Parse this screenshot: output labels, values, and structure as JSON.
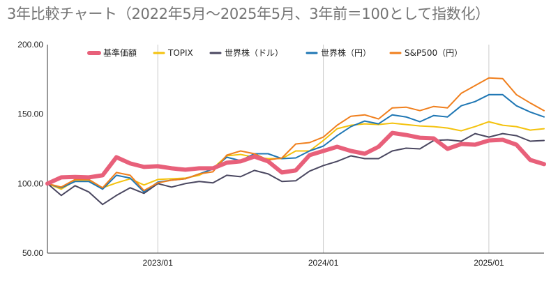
{
  "chart_data": {
    "type": "line",
    "title": "3年比較チャート（2022年5月～2025年5月、3年前＝100として指数化）",
    "xlabel": "",
    "ylabel": "",
    "ylim": [
      50,
      200
    ],
    "y_ticks": [
      "50.00",
      "100.00",
      "150.00",
      "200.00"
    ],
    "x_ticks": [
      "2023/01",
      "2024/01",
      "2025/01"
    ],
    "x_tick_dates": [
      "2023-01",
      "2024-01",
      "2025-01"
    ],
    "x": [
      "2022-05",
      "2022-06",
      "2022-07",
      "2022-08",
      "2022-09",
      "2022-10",
      "2022-11",
      "2022-12",
      "2023-01",
      "2023-02",
      "2023-03",
      "2023-04",
      "2023-05",
      "2023-06",
      "2023-07",
      "2023-08",
      "2023-09",
      "2023-10",
      "2023-11",
      "2023-12",
      "2024-01",
      "2024-02",
      "2024-03",
      "2024-04",
      "2024-05",
      "2024-06",
      "2024-07",
      "2024-08",
      "2024-09",
      "2024-10",
      "2024-11",
      "2024-12",
      "2025-01",
      "2025-02",
      "2025-03",
      "2025-04",
      "2025-05"
    ],
    "grid": "vertical lines at year ticks",
    "legend_position": "top",
    "series": [
      {
        "name": "基準価額",
        "color": "#e8607a",
        "values": [
          100,
          104.5,
          104.8,
          104.5,
          106,
          119,
          114.5,
          112,
          112.5,
          111,
          110,
          111,
          111,
          115,
          116,
          119.5,
          116,
          108,
          109.5,
          120.5,
          123.5,
          126.5,
          123.5,
          121.5,
          126.5,
          136.5,
          135,
          133,
          132.5,
          125,
          128.5,
          128,
          131,
          131.5,
          128,
          117,
          114
        ]
      },
      {
        "name": "TOPIX",
        "color": "#f4c20d",
        "values": [
          100,
          96,
          102,
          102,
          97,
          100.5,
          103.5,
          99,
          103,
          103.5,
          104,
          106,
          111,
          120,
          121,
          119,
          118,
          118,
          123.5,
          123.5,
          131,
          139.5,
          142,
          143,
          142.5,
          143.5,
          142.5,
          141.5,
          141,
          140,
          138,
          141,
          144.5,
          142,
          141,
          138.5,
          139.5
        ]
      },
      {
        "name": "世界株（ドル）",
        "color": "#4a4760",
        "values": [
          100,
          91.5,
          98.5,
          94,
          85,
          91.5,
          97,
          93,
          100,
          97.5,
          100,
          101.5,
          100.5,
          106,
          105,
          109.5,
          107,
          101.5,
          102,
          109,
          113,
          116,
          120,
          118,
          118,
          123.5,
          125.5,
          125,
          131,
          131.5,
          130.5,
          136,
          133.5,
          136,
          134.5,
          130.5,
          131
        ]
      },
      {
        "name": "世界株（円）",
        "color": "#1f77b4",
        "values": [
          100,
          97,
          101.5,
          101.5,
          96,
          106,
          104,
          94,
          101,
          102.5,
          103.5,
          107,
          110.5,
          119,
          116.5,
          121.5,
          121.5,
          118,
          118.5,
          123.5,
          127,
          134.5,
          141,
          145,
          143,
          149.5,
          148,
          144.5,
          149,
          148,
          156,
          159,
          164,
          164,
          156,
          151.5,
          148
        ]
      },
      {
        "name": "S&P500（円）",
        "color": "#f07f1d",
        "values": [
          100,
          97.5,
          103,
          103,
          97,
          108,
          106,
          95,
          100.5,
          102.5,
          103.5,
          107,
          108.5,
          120.5,
          123.5,
          121.5,
          117,
          118.5,
          128.5,
          129.5,
          133.5,
          142,
          148.5,
          149.5,
          146.5,
          154.5,
          155,
          152.5,
          155.5,
          154.5,
          165,
          170.5,
          176,
          175.5,
          164,
          158,
          152.5
        ]
      }
    ]
  }
}
